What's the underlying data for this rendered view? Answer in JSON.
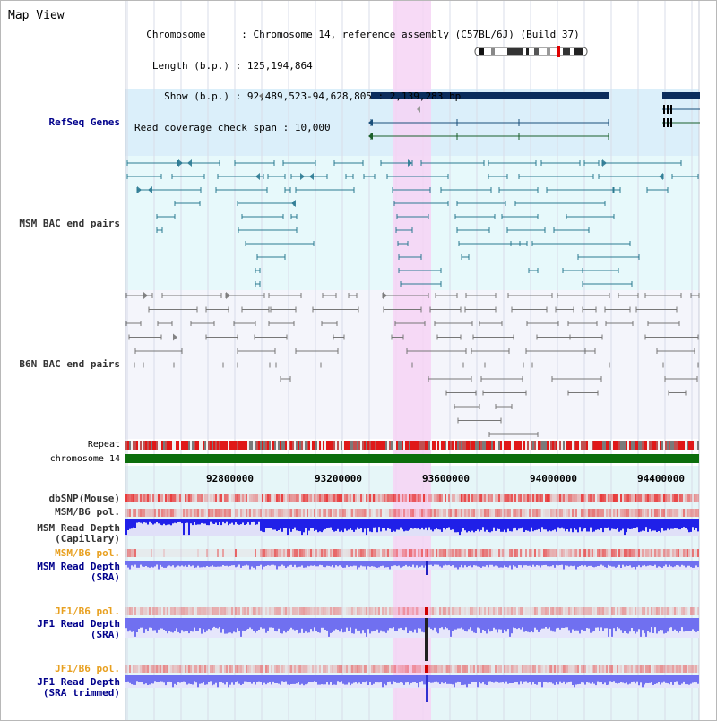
{
  "title": "Map View",
  "info": {
    "chromosome_label": "Chromosome",
    "chromosome_value": "Chromosome 14, reference assembly (C57BL/6J) (Build 37)",
    "length_label": "Length (b.p.)",
    "length_value": "125,194,864",
    "show_label": "Show (b.p.)",
    "show_value": "92,489,523-94,628,805 : 2,139,283 bp",
    "span_label": "Read coverage check span",
    "span_value": "10,000"
  },
  "tracks": {
    "refseq": "RefSeq Genes",
    "msm_bac": "MSM BAC end pairs",
    "b6n_bac": "B6N BAC end pairs",
    "repeat": "Repeat",
    "chromosome": "chromosome 14",
    "dbsnp": "dbSNP(Mouse)",
    "msm_b6_pol_1": "MSM/B6 pol.",
    "msm_depth_cap_1": "MSM Read Depth",
    "msm_depth_cap_2": "(Capillary)",
    "msm_b6_pol_2": "MSM/B6 pol.",
    "msm_depth_sra_1": "MSM Read Depth",
    "msm_depth_sra_2": "(SRA)",
    "jf1_b6_pol_1": "JF1/B6 pol.",
    "jf1_depth_sra_1": "JF1 Read Depth",
    "jf1_depth_sra_2": "(SRA)",
    "jf1_b6_pol_2": "JF1/B6 pol.",
    "jf1_depth_trim_1": "JF1 Read Depth",
    "jf1_depth_trim_2": "(SRA trimmed)"
  },
  "axis_ticks": [
    "92800000",
    "93200000",
    "93600000",
    "94000000",
    "94400000"
  ],
  "colors": {
    "refseq_bg": "#dbeffa",
    "msm_bg": "#e7f9fb",
    "b6n_bg": "#f4f5fb",
    "lower_bg": "#e6f6f8",
    "highlight": "#f6d4f4",
    "gene_dark": "#0b2d5c",
    "msm_line": "#2b7a92",
    "b6n_line": "#777777",
    "chromosome_bar": "#0c6e0c",
    "label_navy": "#00008b",
    "label_orange": "#e8a020",
    "label_gray": "#333333",
    "depth_blue": "#2020e8",
    "depth_sra": "#7070f0",
    "snp_red": "#e83030"
  }
}
